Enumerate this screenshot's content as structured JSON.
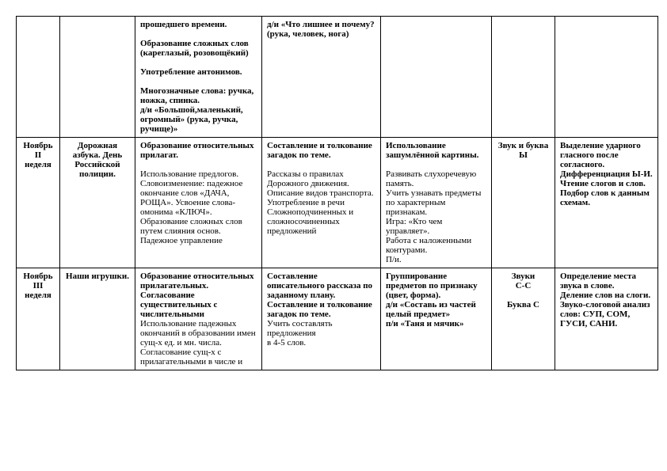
{
  "rows": [
    {
      "period": "",
      "topic": "",
      "c3": "прошедшего времени.\n\nОбразование сложных слов (кареглазый, розовощёкий)\n\nУпотребление антонимов.\n\nМногозначные слова: ручка, ножка, спинка.\nд/и «Большой,маленький, огромный» (рука, ручка, ручище)»",
      "c4": "д/и «Что лишнее и почему?(рука, человек, нога)",
      "c5": "",
      "c6": "",
      "c7": ""
    },
    {
      "period": "Ноябрь\nII\nнеделя",
      "topic": "Дорожная азбука. День Российской полиции.",
      "c3_bold": "Образование относительных прилагат.",
      "c3_body": "\n\nИспользование предлогов.\nСловоизменение: падежное окончание слов «ДАЧА, РОЩА». Усвоение слова-омонима «КЛЮЧ».\nОбразование сложных слов путем слияния основ.\nПадежное управление",
      "c4_bold": "Составление и толкование загадок по теме.",
      "c4_body": "\n\nРассказы о правилах Дорожного движения.\nОписание видов транспорта.\nУпотребление в речи Сложноподчиненных и сложносочиненных предложений",
      "c5_bold": "Использование зашумлённой картины.",
      "c5_body": "\n\nРазвивать слухоречевую память.\nУчить узнавать предметы по характерным признакам.\nИгра: «Кто чем управляет».\nРабота с наложенными контурами.\nП/и.",
      "c6": "Звук и буква\nЫ",
      "c7": "Выделение ударного гласного после согласного.\nДифференциация Ы-И.\nЧтение слогов и слов.\nПодбор слов к данным схемам."
    },
    {
      "period": "Ноябрь\nIII\nнеделя",
      "topic": "Наши игрушки.",
      "c3_bold": "Образование относительных прилагательных.\nСогласование существительных с числительными",
      "c3_body": "\nИспользование падежных окончаний в образовании имен сущ-х ед. и мн. числа.\nСогласование сущ-х с прилагательными в числе и",
      "c4_bold": "Составление описательного рассказа по заданному плану.\nСоставление и толкование загадок по теме.",
      "c4_body": "\nУчить составлять предложения\nв 4-5 слов.",
      "c5_bold": "Группирование предметов по признаку (цвет, форма).\nд/и «Составь из частей целый предмет»\nп/и «Таня и мячик»",
      "c5_body": "",
      "c6": "Звуки\nС-С\n\nБуква С",
      "c7": "Определение места звука в слове.\nДеление слов на слоги.\nЗвуко-слоговой анализ слов: СУП, СОМ, ГУСИ, САНИ."
    }
  ]
}
